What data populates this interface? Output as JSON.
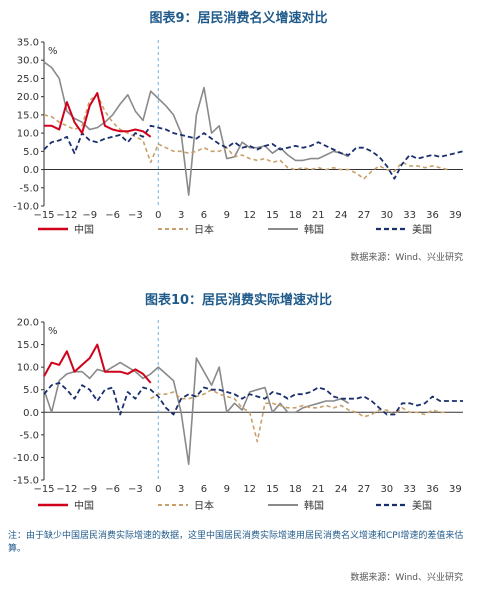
{
  "chart1_title": "图表9：居民消费名义增速对比",
  "chart2_title": "图表10：居民消费实际增速对比",
  "source1": "数据来源：Wind、兴业研究",
  "source2": "数据来源：Wind、兴业研究",
  "note": "注：由于缺少中国居民消费实际增速的数据，这里中国居民消费实际增速用居民消费名义增速和CPI增速的差值来估算。",
  "legend": [
    "中国",
    "日本",
    "韩国",
    "美国"
  ],
  "colors": {
    "china": "#d0021b",
    "japan": "#c9a06a",
    "korea": "#8a8a8a",
    "usa": "#1a2f6e",
    "zero_line": "#6fb3d6",
    "title": "#1f5a8a"
  },
  "chart_data": [
    {
      "type": "line",
      "title": "图表9：居民消费名义增速对比",
      "unit": "%",
      "ylim": [
        -10,
        35
      ],
      "yticks": [
        35.0,
        30.0,
        25.0,
        20.0,
        15.0,
        10.0,
        5.0,
        0.0,
        -5.0,
        -10.0
      ],
      "xlim": [
        -15,
        40
      ],
      "xticks": [
        -15,
        -12,
        -9,
        -6,
        -3,
        0,
        3,
        6,
        9,
        12,
        15,
        18,
        21,
        24,
        27,
        30,
        33,
        36,
        39
      ],
      "xtick_labels": [
        "−15",
        "−12",
        "−9",
        "−6",
        "−3",
        "0",
        "3",
        "6",
        "9",
        "12",
        "15",
        "18",
        "21",
        "24",
        "27",
        "30",
        "33",
        "36",
        "39"
      ],
      "series": [
        {
          "name": "中国",
          "key": "china",
          "x": [
            -15,
            -14,
            -13,
            -12,
            -11,
            -10,
            -9,
            -8,
            -7,
            -6,
            -5,
            -4,
            -3,
            -2,
            -1
          ],
          "y": [
            12,
            12,
            11,
            18.5,
            13,
            10,
            17.5,
            21,
            12,
            11,
            10.5,
            10.5,
            11,
            10.5,
            9
          ]
        },
        {
          "name": "日本",
          "key": "japan",
          "x": [
            -15,
            -14,
            -13,
            -12,
            -11,
            -10,
            -9,
            -8,
            -7,
            -6,
            -5,
            -4,
            -3,
            -2,
            -1,
            0,
            1,
            2,
            3,
            4,
            5,
            6,
            7,
            8,
            9,
            10,
            11,
            12,
            13,
            14,
            15,
            16,
            17,
            18,
            19,
            20,
            21,
            22,
            23,
            24,
            25,
            26,
            27,
            28,
            29,
            30,
            31,
            32,
            33,
            34,
            35,
            36,
            37,
            38
          ],
          "y": [
            15,
            14.5,
            13,
            12,
            11,
            12,
            19,
            20.5,
            16,
            13,
            11,
            10,
            9,
            8,
            2,
            7,
            6,
            5,
            5,
            4.5,
            5,
            6,
            5,
            5,
            6,
            3.5,
            4,
            3,
            2.5,
            3,
            2,
            2.5,
            0.5,
            0,
            0.5,
            0,
            0.5,
            0,
            0.5,
            0,
            0,
            -1,
            -2.5,
            -0.5,
            1,
            0,
            -0.5,
            2,
            1,
            1,
            0.5,
            1,
            0.5,
            0
          ]
        },
        {
          "name": "韩国",
          "key": "korea",
          "x": [
            -15,
            -14,
            -13,
            -12,
            -11,
            -10,
            -9,
            -8,
            -7,
            -6,
            -5,
            -4,
            -3,
            -2,
            -1,
            0,
            1,
            2,
            3,
            4,
            5,
            6,
            7,
            8,
            9,
            10,
            11,
            12,
            13,
            14,
            15,
            16,
            17,
            18,
            19,
            20,
            21,
            22,
            23,
            24,
            25
          ],
          "y": [
            29.5,
            28,
            25,
            16,
            14,
            13,
            11,
            11.5,
            13,
            15,
            18,
            20.5,
            16,
            13.5,
            21.5,
            19.5,
            17.5,
            15,
            10,
            -7,
            15,
            22.5,
            10,
            12,
            3,
            3.5,
            7.5,
            6,
            6,
            6.5,
            4.5,
            6,
            4,
            2.5,
            2.5,
            3,
            3,
            4,
            5,
            4.5,
            3.5
          ]
        },
        {
          "name": "美国",
          "key": "usa",
          "x": [
            -15,
            -14,
            -13,
            -12,
            -11,
            -10,
            -9,
            -8,
            -7,
            -6,
            -5,
            -4,
            -3,
            -2,
            -1,
            0,
            1,
            2,
            3,
            4,
            5,
            6,
            7,
            8,
            9,
            10,
            11,
            12,
            13,
            14,
            15,
            16,
            17,
            18,
            19,
            20,
            21,
            22,
            23,
            24,
            25,
            26,
            27,
            28,
            29,
            30,
            31,
            32,
            33,
            34,
            35,
            36,
            37,
            38,
            39,
            40
          ],
          "y": [
            5.5,
            7.5,
            8,
            9,
            4.5,
            10,
            8,
            7.5,
            8.5,
            9,
            9.5,
            7.5,
            10,
            9,
            12,
            11.5,
            11,
            10,
            9.5,
            9,
            8.5,
            10,
            8.5,
            7,
            6,
            7.5,
            6,
            6.5,
            5.5,
            6.5,
            7,
            5.5,
            6,
            6.5,
            6,
            6.5,
            7.5,
            6.5,
            5.5,
            4.5,
            4,
            6,
            6,
            5,
            3.5,
            1,
            -2.5,
            1.5,
            4,
            3,
            3.5,
            4,
            3.5,
            4,
            4.5,
            5
          ]
        }
      ]
    },
    {
      "type": "line",
      "title": "图表10：居民消费实际增速对比",
      "unit": "%",
      "ylim": [
        -15,
        20
      ],
      "yticks": [
        20.0,
        15.0,
        10.0,
        5.0,
        0.0,
        -5.0,
        -10.0,
        -15.0
      ],
      "xlim": [
        -15,
        40
      ],
      "xticks": [
        -15,
        -12,
        -9,
        -6,
        -3,
        0,
        3,
        6,
        9,
        12,
        15,
        18,
        21,
        24,
        27,
        30,
        33,
        36,
        39
      ],
      "xtick_labels": [
        "−15",
        "−12",
        "−9",
        "−6",
        "−3",
        "0",
        "3",
        "6",
        "9",
        "12",
        "15",
        "18",
        "21",
        "24",
        "27",
        "30",
        "33",
        "36",
        "39"
      ],
      "series": [
        {
          "name": "中国",
          "key": "china",
          "x": [
            -15,
            -14,
            -13,
            -12,
            -11,
            -10,
            -9,
            -8,
            -7,
            -6,
            -5,
            -4,
            -3,
            -2,
            -1
          ],
          "y": [
            8,
            11,
            10.5,
            13.5,
            9,
            10.5,
            12,
            15,
            9,
            9,
            9,
            8.5,
            9.5,
            8.5,
            6.5
          ]
        },
        {
          "name": "日本",
          "key": "japan",
          "x": [
            -1,
            0,
            1,
            2,
            3,
            4,
            5,
            6,
            7,
            8,
            9,
            10,
            11,
            12,
            13,
            14,
            15,
            16,
            17,
            18,
            19,
            20,
            21,
            22,
            23,
            24,
            25,
            26,
            27,
            28,
            29,
            30,
            31,
            32,
            33,
            34,
            35,
            36,
            37,
            38
          ],
          "y": [
            3,
            4,
            4,
            4.5,
            3,
            3,
            3.5,
            4,
            5,
            4,
            3.5,
            3,
            1,
            0,
            -6.5,
            2,
            2,
            1.5,
            1,
            1,
            1.5,
            1,
            1,
            1.5,
            1,
            1.5,
            0.5,
            0,
            -1,
            -0.5,
            0.5,
            0.5,
            -0.5,
            1,
            0,
            0,
            -0.5,
            0.5,
            0,
            0
          ]
        },
        {
          "name": "韩国",
          "key": "korea",
          "x": [
            -15,
            -14,
            -13,
            -12,
            -11,
            -10,
            -9,
            -8,
            -7,
            -6,
            -5,
            -4,
            -3,
            -2,
            -1,
            0,
            1,
            2,
            3,
            4,
            5,
            6,
            7,
            8,
            9,
            10,
            11,
            12,
            13,
            14,
            15,
            16,
            17,
            18,
            19,
            20,
            21,
            22,
            23,
            24,
            25
          ],
          "y": [
            5,
            0,
            7,
            8.5,
            9,
            9,
            7.5,
            9.5,
            9,
            10,
            11,
            10,
            9,
            7.5,
            8.5,
            10,
            8.5,
            7,
            0,
            -11.5,
            12,
            9,
            6,
            10,
            0,
            2,
            0.5,
            4.5,
            5,
            5.5,
            0,
            2,
            0,
            0,
            1,
            1.5,
            2,
            2.5,
            2.5,
            3,
            2
          ]
        },
        {
          "name": "美国",
          "key": "usa",
          "x": [
            -15,
            -14,
            -13,
            -12,
            -11,
            -10,
            -9,
            -8,
            -7,
            -6,
            -5,
            -4,
            -3,
            -2,
            -1,
            0,
            1,
            2,
            3,
            4,
            5,
            6,
            7,
            8,
            9,
            10,
            11,
            12,
            13,
            14,
            15,
            16,
            17,
            18,
            19,
            20,
            21,
            22,
            23,
            24,
            25,
            26,
            27,
            28,
            29,
            30,
            31,
            32,
            33,
            34,
            35,
            36,
            37,
            38,
            39,
            40
          ],
          "y": [
            4,
            6,
            6.5,
            5,
            3,
            6,
            5,
            2.5,
            5,
            5.5,
            -0.5,
            4.5,
            3,
            5.5,
            5,
            3.5,
            1,
            -0.5,
            3,
            4,
            3.5,
            5.5,
            5,
            5,
            4.5,
            4,
            3,
            4,
            3.5,
            3,
            4.5,
            4,
            3,
            4,
            4,
            4.5,
            5.5,
            5,
            3.5,
            3,
            3,
            3,
            3.5,
            2.5,
            1,
            -0.5,
            -0.5,
            2,
            2,
            1.5,
            2,
            3.5,
            2.5,
            2.5,
            2.5,
            2.5
          ]
        }
      ]
    }
  ]
}
